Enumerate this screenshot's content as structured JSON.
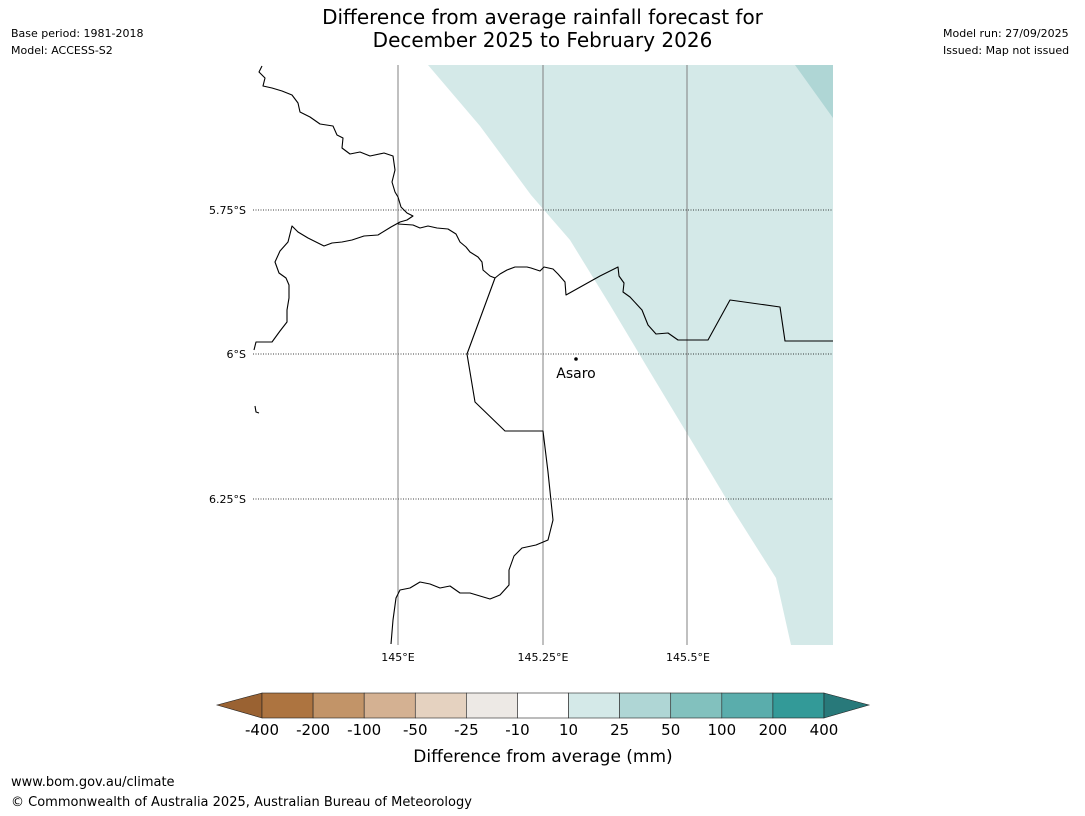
{
  "header": {
    "base_period": "Base period: 1981-2018",
    "model": "Model: ACCESS-S2",
    "model_run": "Model run: 27/09/2025",
    "issued": "Issued: Map not issued",
    "title_line1": "Difference from average rainfall forecast for",
    "title_line2": "December 2025 to February 2026"
  },
  "map": {
    "lat_labels": [
      "5.75°S",
      "6°S",
      "6.25°S"
    ],
    "lon_labels": [
      "145°E",
      "145.25°E",
      "145.5°E"
    ],
    "place": {
      "name": "Asaro"
    },
    "forecast_category": "10 to 25",
    "colors": {
      "land": "#ffffff",
      "zone_10_25": "#d4e9e8",
      "zone_25_50": "#afd6d5",
      "border": "#000000",
      "gridline": "#808080"
    }
  },
  "legend": {
    "tick_labels": [
      "-400",
      "-200",
      "-100",
      "-50",
      "-25",
      "-10",
      "10",
      "25",
      "50",
      "100",
      "200",
      "400"
    ],
    "colors": [
      "#9a6232",
      "#ad7440",
      "#c29468",
      "#d4b192",
      "#e5d2c0",
      "#ede9e5",
      "#ffffff",
      "#d4e9e8",
      "#afd6d5",
      "#82c1be",
      "#5aadac",
      "#339a98",
      "#28797a"
    ],
    "title": "Difference from average (mm)"
  },
  "footer": {
    "url": "www.bom.gov.au/climate",
    "copyright": "© Commonwealth of Australia 2025, Australian Bureau of Meteorology"
  }
}
